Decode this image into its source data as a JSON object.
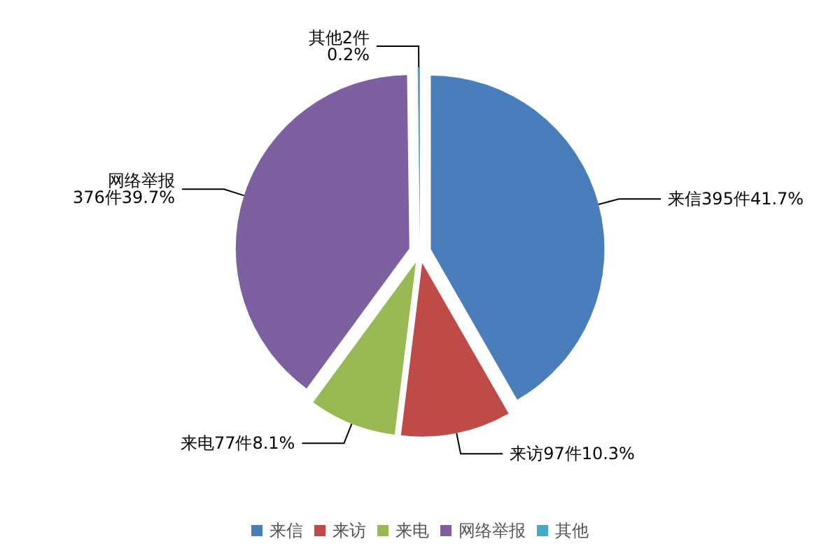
{
  "chart_data": {
    "type": "pie",
    "categories": [
      "来信",
      "来访",
      "来电",
      "网络举报",
      "其他"
    ],
    "values": [
      395,
      97,
      77,
      376,
      2
    ],
    "value_labels": [
      "来信395件41.7%",
      "来访97件10.3%",
      "来电77件8.1%",
      "网络举报\n376件39.7%",
      "其他2件\n0.2%"
    ],
    "colors": [
      "#4a7ebb",
      "#be4b48",
      "#98b954",
      "#7d60a0",
      "#46aac5"
    ],
    "legend": "bottom"
  }
}
